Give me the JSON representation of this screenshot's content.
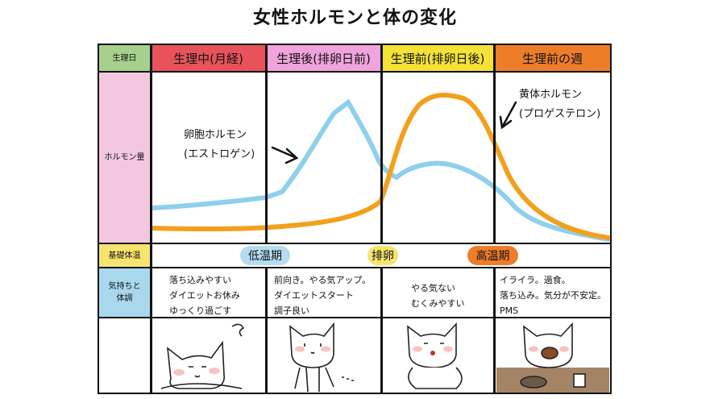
{
  "title": "女性ホルモンと体の変化",
  "row_labels": {
    "phase": "生理日",
    "hormone": "ホルモン量",
    "temperature": "基礎体温",
    "condition_line1": "気持ちと",
    "condition_line2": "体調"
  },
  "phases": [
    {
      "label": "生理中(月経)",
      "color": "#e8535b"
    },
    {
      "label": "生理後(排卵日前)",
      "color": "#f0a3dd"
    },
    {
      "label": "生理前(排卵日後)",
      "color": "#f4e236"
    },
    {
      "label": "生理前の週",
      "color": "#ee7d2a"
    }
  ],
  "label_colors": {
    "phase": "#a8d08d",
    "hormone": "#f2c7df",
    "temperature": "#f6e46e",
    "condition": "#a9d8ee"
  },
  "temperature": {
    "low": {
      "label": "低温期",
      "color": "#b5dcf0"
    },
    "ovulation": {
      "label": "排卵",
      "color": "#f6e46e"
    },
    "high": {
      "label": "高温期",
      "color": "#ee7d2a"
    }
  },
  "annotations": {
    "estrogen_line1": "卵胞ホルモン",
    "estrogen_line2": "(エストロゲン)",
    "progesterone_line1": "黄体ホルモン",
    "progesterone_line2": "(プロゲステロン)"
  },
  "curve_colors": {
    "estrogen": "#8fcfee",
    "progesterone": "#f2a01c"
  },
  "conditions": [
    [
      "落ち込みやすい",
      "ダイエットお休み",
      "ゆっくり過ごす"
    ],
    [
      "前向き。やる気アップ。",
      "ダイエットスタート",
      "調子良い"
    ],
    [
      "やる気ない",
      "むくみやすい"
    ],
    [
      "イライラ。過食。",
      "落ち込み。気分が不安定。",
      "PMS"
    ]
  ]
}
